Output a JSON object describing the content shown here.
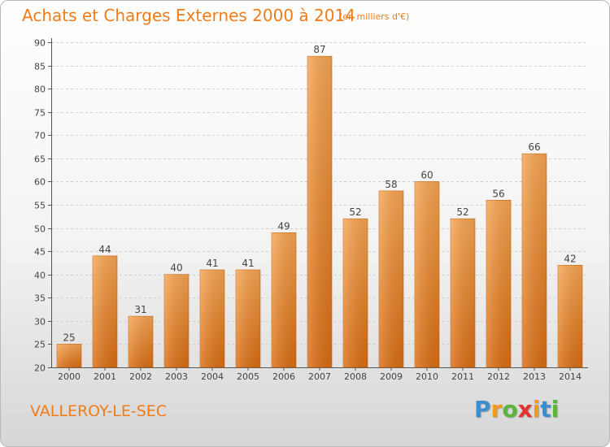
{
  "header": {
    "title": "Achats et Charges Externes 2000 à 2014",
    "subtitle": "(en milliers d'€)"
  },
  "footer": {
    "town": "VALLEROY-LE-SEC",
    "logo_letters": [
      "P",
      "r",
      "o",
      "x",
      "i",
      "t",
      "i"
    ],
    "logo_colors": [
      "#3a8fd1",
      "#f39a1e",
      "#59b63b",
      "#e2322d",
      "#f39a1e",
      "#3a8fd1",
      "#59b63b"
    ]
  },
  "chart_data": {
    "type": "bar",
    "title": "Achats et Charges Externes 2000 à 2014",
    "subtitle": "(en milliers d'€)",
    "xlabel": "",
    "ylabel": "",
    "categories": [
      "2000",
      "2001",
      "2002",
      "2003",
      "2004",
      "2005",
      "2006",
      "2007",
      "2008",
      "2009",
      "2010",
      "2011",
      "2012",
      "2013",
      "2014"
    ],
    "values": [
      25,
      44,
      31,
      40,
      41,
      41,
      49,
      87,
      52,
      58,
      60,
      52,
      56,
      66,
      42
    ],
    "ylim": [
      20,
      90
    ],
    "yticks": [
      20,
      25,
      30,
      35,
      40,
      45,
      50,
      55,
      60,
      65,
      70,
      75,
      80,
      85,
      90
    ],
    "grid": true,
    "bar_color": "#f08a24",
    "data_labels": true
  }
}
